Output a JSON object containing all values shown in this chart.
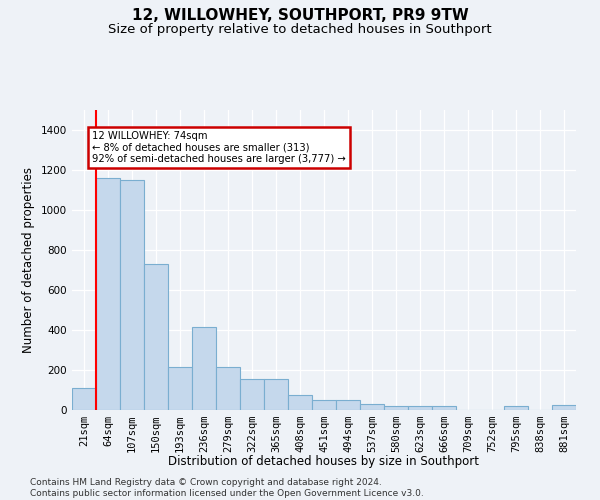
{
  "title": "12, WILLOWHEY, SOUTHPORT, PR9 9TW",
  "subtitle": "Size of property relative to detached houses in Southport",
  "xlabel": "Distribution of detached houses by size in Southport",
  "ylabel": "Number of detached properties",
  "categories": [
    "21sqm",
    "64sqm",
    "107sqm",
    "150sqm",
    "193sqm",
    "236sqm",
    "279sqm",
    "322sqm",
    "365sqm",
    "408sqm",
    "451sqm",
    "494sqm",
    "537sqm",
    "580sqm",
    "623sqm",
    "666sqm",
    "709sqm",
    "752sqm",
    "795sqm",
    "838sqm",
    "881sqm"
  ],
  "bar_values": [
    110,
    1160,
    1150,
    730,
    215,
    415,
    215,
    155,
    155,
    75,
    48,
    48,
    30,
    18,
    18,
    20,
    0,
    0,
    20,
    0,
    25
  ],
  "bar_color": "#c5d8ec",
  "bar_edge_color": "#7aaed0",
  "annotation_text": "12 WILLOWHEY: 74sqm\n← 8% of detached houses are smaller (313)\n92% of semi-detached houses are larger (3,777) →",
  "annotation_box_color": "#ffffff",
  "annotation_box_edge": "#cc0000",
  "redline_x": 0.5,
  "ylim": [
    0,
    1500
  ],
  "yticks": [
    0,
    200,
    400,
    600,
    800,
    1000,
    1200,
    1400
  ],
  "footer": "Contains HM Land Registry data © Crown copyright and database right 2024.\nContains public sector information licensed under the Open Government Licence v3.0.",
  "bg_color": "#eef2f7",
  "plot_bg_color": "#eef2f7",
  "grid_color": "#ffffff",
  "title_fontsize": 11,
  "subtitle_fontsize": 9.5,
  "xlabel_fontsize": 8.5,
  "ylabel_fontsize": 8.5,
  "tick_fontsize": 7.5,
  "footer_fontsize": 6.5
}
